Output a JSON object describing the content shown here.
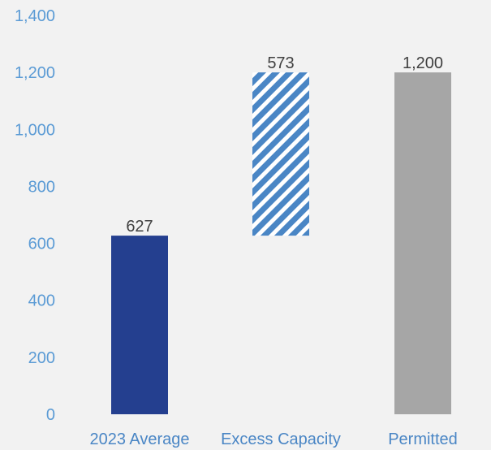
{
  "chart_data": {
    "type": "bar",
    "subtype": "waterfall",
    "title": "",
    "xlabel": "",
    "ylabel": "",
    "ylim": [
      0,
      1400
    ],
    "y_ticks": [
      "0",
      "200",
      "400",
      "600",
      "800",
      "1,000",
      "1,200",
      "1,400"
    ],
    "grid": false,
    "legend": "none",
    "categories": [
      "2023 Average",
      "Excess Capacity",
      "Permitted"
    ],
    "bars": [
      {
        "category": "2023 Average",
        "base": 0,
        "value": 627,
        "label": "627",
        "fill": "#243f8f",
        "pattern": "solid"
      },
      {
        "category": "Excess Capacity",
        "base": 627,
        "value": 573,
        "label": "573",
        "fill": "#4a86c5",
        "pattern": "diagonal-stripes"
      },
      {
        "category": "Permitted",
        "base": 0,
        "value": 1200,
        "label": "1,200",
        "fill": "#a6a6a6",
        "pattern": "solid"
      }
    ],
    "colors": {
      "axis_text": "#5b9bd5",
      "category_text": "#4a86c5",
      "data_label": "#404040",
      "background": "#f2f2f2"
    }
  }
}
